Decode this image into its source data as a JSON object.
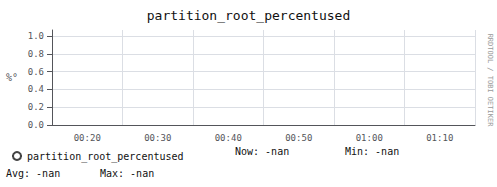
{
  "chart_data": {
    "type": "line",
    "title": "partition_root_percentused",
    "ylabel": "%°",
    "categories": [
      "00:20",
      "00:30",
      "00:40",
      "00:50",
      "01:00",
      "01:10"
    ],
    "series": [
      {
        "name": "partition_root_percentused",
        "color": "#444444",
        "values": [
          null,
          null,
          null,
          null,
          null,
          null
        ]
      }
    ],
    "ylim": [
      0.0,
      1.07
    ],
    "yticks": [
      {
        "value": 0.0,
        "label": "0.0"
      },
      0.2,
      0.4,
      0.6,
      0.8,
      {
        "value": 1.0,
        "label": "1.0"
      }
    ],
    "grid": true,
    "annotations": [
      "Now: -nan",
      "Min: -nan",
      "Avg: -nan",
      "Max: -nan",
      "RRDTOOL / TOBI OETIKER"
    ]
  }
}
